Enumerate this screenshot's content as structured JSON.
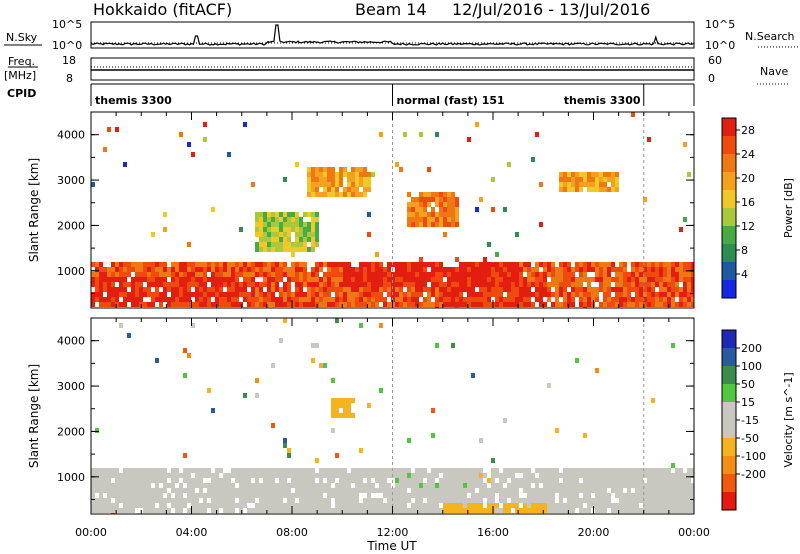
{
  "header": {
    "title": "Hokkaido (fitACF)",
    "beam": "Beam 14",
    "dates": "12/Jul/2016 - 13/Jul/2016"
  },
  "top_panels": {
    "nsky_label": "N.Sky",
    "nsky_ticks": [
      "10^5",
      "10^0"
    ],
    "nsearch_label": "N.Search",
    "freq_label": [
      "Freq.",
      "[MHz]"
    ],
    "freq_ticks": [
      "18",
      "8"
    ],
    "nave_label": "Nave",
    "nave_ticks": [
      "60",
      "0"
    ],
    "cpid_label": "CPID",
    "cpid_segments": [
      {
        "label": "themis 3300",
        "start": 0,
        "end": 12
      },
      {
        "label": "normal (fast) 151",
        "start": 12,
        "end": 22
      },
      {
        "label": "themis 3300",
        "start": 22,
        "end": 24
      }
    ]
  },
  "chart_data": [
    {
      "type": "heatmap",
      "title": "Power",
      "xlabel": "Time UT",
      "ylabel": "Slant Range [km]",
      "xlim": [
        0,
        24
      ],
      "ylim": [
        180,
        4500
      ],
      "x_ticks": [
        "00:00",
        "04:00",
        "08:00",
        "12:00",
        "16:00",
        "20:00",
        "00:00"
      ],
      "y_ticks": [
        "1000",
        "2000",
        "3000",
        "4000"
      ],
      "colorbar": {
        "label": "Power [dB]",
        "ticks": [
          "4",
          "8",
          "12",
          "16",
          "20",
          "24",
          "28"
        ],
        "range": [
          0,
          30
        ],
        "colors": [
          "#1428e6",
          "#1e5aa0",
          "#2d8c50",
          "#46aa46",
          "#aac83c",
          "#f0c828",
          "#f5a01e",
          "#f07814",
          "#f04b0f",
          "#e11e0f"
        ]
      },
      "regions": [
        {
          "x": [
            0,
            24
          ],
          "y": [
            250,
            1300
          ],
          "level": 25,
          "description": "continuous backscatter"
        },
        {
          "x": [
            0,
            6.5
          ],
          "y": [
            250,
            900
          ],
          "level": 28
        },
        {
          "x": [
            10,
            17
          ],
          "y": [
            700,
            1300
          ],
          "level": 29
        },
        {
          "x": [
            14,
            18
          ],
          "y": [
            300,
            800
          ],
          "level": 28
        },
        {
          "x": [
            8.5,
            11
          ],
          "y": [
            2700,
            3300
          ],
          "level": 20
        },
        {
          "x": [
            12.5,
            14.5
          ],
          "y": [
            2000,
            2800
          ],
          "level": 22
        },
        {
          "x": [
            18.5,
            21
          ],
          "y": [
            2800,
            3200
          ],
          "level": 20
        },
        {
          "x": [
            6.5,
            9
          ],
          "y": [
            1500,
            2300
          ],
          "level": 14
        }
      ]
    },
    {
      "type": "heatmap",
      "title": "Velocity",
      "xlabel": "Time UT",
      "ylabel": "Slant Range [km]",
      "xlim": [
        0,
        24
      ],
      "ylim": [
        180,
        4500
      ],
      "x_ticks": [
        "00:00",
        "04:00",
        "08:00",
        "12:00",
        "16:00",
        "20:00",
        "00:00"
      ],
      "y_ticks": [
        "1000",
        "2000",
        "3000",
        "4000"
      ],
      "colorbar": {
        "label": "Velocity [m s^-1]",
        "ticks": [
          "200",
          "100",
          "50",
          "15",
          "-15",
          "-50",
          "-100",
          "-200"
        ],
        "range": [
          -250,
          250
        ],
        "colors": [
          "#1e28b4",
          "#285aa0",
          "#3c8c50",
          "#50c83c",
          "#c8c8c0",
          "#c8c8c0",
          "#f5b41e",
          "#f58c14",
          "#f05a0f",
          "#e6190f"
        ]
      },
      "regions": [
        {
          "x": [
            0,
            24
          ],
          "y": [
            250,
            1300
          ],
          "level": 0,
          "description": "mostly ground scatter"
        },
        {
          "x": [
            11,
            15
          ],
          "y": [
            800,
            1150
          ],
          "level": 40
        },
        {
          "x": [
            14,
            18
          ],
          "y": [
            300,
            500
          ],
          "level": -60
        },
        {
          "x": [
            9.5,
            10.5
          ],
          "y": [
            2300,
            2800
          ],
          "level": -70
        },
        {
          "x": [
            15,
            16
          ],
          "y": [
            900,
            1100
          ],
          "level": -50
        }
      ]
    }
  ]
}
